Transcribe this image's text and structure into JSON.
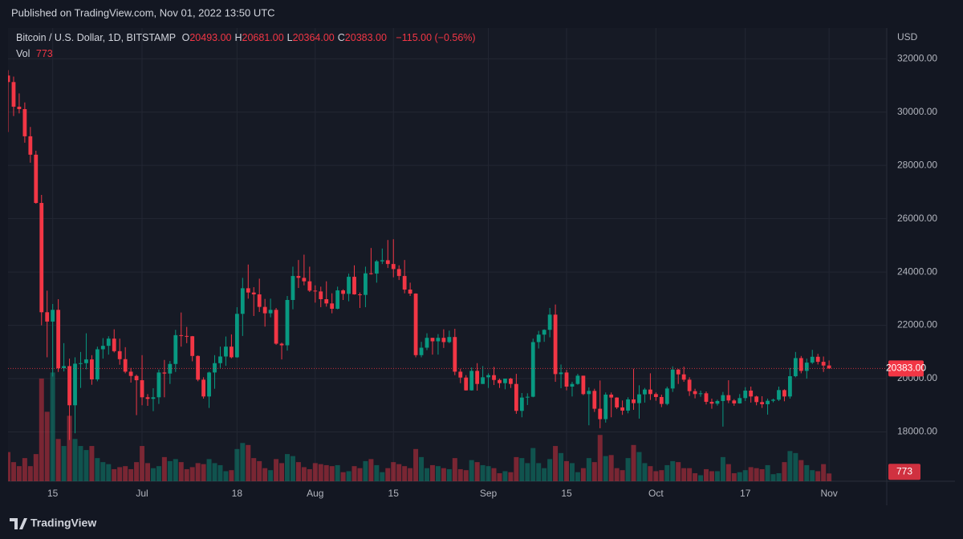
{
  "header": {
    "published": "Published on TradingView.com, Nov 01, 2022 13:50 UTC",
    "brand": "TradingView"
  },
  "chart_data": {
    "type": "candlestick",
    "legend": {
      "symbol": "Bitcoin / U.S. Dollar, 1D, BITSTAMP",
      "fields": [
        {
          "key": "O",
          "value": "20493.00"
        },
        {
          "key": "H",
          "value": "20681.00"
        },
        {
          "key": "L",
          "value": "20364.00"
        },
        {
          "key": "C",
          "value": "20383.00"
        }
      ],
      "change": "−115.00 (−0.56%)",
      "volume_key": "Vol",
      "volume_value": "773"
    },
    "currency": "USD",
    "price_label": "20383.00",
    "volume_label": "773",
    "up_color": "#089981",
    "down_color": "#f23645",
    "categories": [
      null,
      null,
      null,
      null,
      null,
      null,
      null,
      null,
      "15",
      null,
      null,
      null,
      null,
      null,
      null,
      null,
      null,
      null,
      null,
      null,
      null,
      null,
      null,
      null,
      "Jul",
      null,
      null,
      null,
      null,
      null,
      null,
      null,
      null,
      null,
      null,
      null,
      null,
      null,
      null,
      null,
      null,
      "18",
      null,
      null,
      null,
      null,
      null,
      null,
      null,
      null,
      null,
      null,
      null,
      null,
      null,
      "Aug",
      null,
      null,
      null,
      null,
      null,
      null,
      null,
      null,
      null,
      null,
      null,
      null,
      null,
      "15",
      null,
      null,
      null,
      null,
      null,
      null,
      null,
      null,
      null,
      null,
      null,
      null,
      null,
      null,
      null,
      null,
      "Sep",
      null,
      null,
      null,
      null,
      null,
      null,
      null,
      null,
      null,
      null,
      null,
      null,
      null,
      "15",
      null,
      null,
      null,
      null,
      null,
      null,
      null,
      null,
      null,
      null,
      null,
      null,
      null,
      null,
      null,
      "Oct",
      null,
      null,
      null,
      null,
      null,
      null,
      null,
      null,
      null,
      null,
      null,
      null,
      null,
      null,
      null,
      "17",
      null,
      null,
      null,
      null,
      null,
      null,
      null,
      null,
      null,
      null,
      null,
      null,
      null,
      null,
      "Nov"
    ],
    "open": [
      31370,
      31125,
      30200,
      30110,
      29090,
      28400,
      26590,
      22490,
      22140,
      22580,
      20390,
      20470,
      19000,
      20560,
      20580,
      20720,
      19970,
      21100,
      21230,
      21500,
      21030,
      20730,
      20260,
      20100,
      19940,
      19300,
      19240,
      19300,
      20230,
      20190,
      20550,
      21630,
      21600,
      21590,
      20850,
      19960,
      19330,
      20230,
      20580,
      20830,
      21200,
      20800,
      22430,
      23390,
      23230,
      23160,
      22690,
      22450,
      22580,
      21310,
      21250,
      22950,
      23850,
      23780,
      23650,
      23300,
      23270,
      22980,
      22820,
      22620,
      23310,
      23180,
      23820,
      23160,
      23140,
      23950,
      23940,
      24400,
      24440,
      24300,
      24110,
      23850,
      23340,
      23190,
      20880,
      21160,
      21530,
      21400,
      21530,
      21370,
      21560,
      20260,
      20040,
      19560,
      20290,
      19800,
      20050,
      20130,
      19950,
      19830,
      20000,
      19800,
      18790,
      19290,
      19320,
      21370,
      21650,
      21830,
      22400,
      20170,
      20230,
      19700,
      19800,
      20110,
      19420,
      19540,
      18870,
      18480,
      19400,
      19290,
      18920,
      18800,
      19220,
      19080,
      19410,
      19590,
      19420,
      19310,
      19050,
      19630,
      20340,
      20160,
      19960,
      19530,
      19420,
      19450,
      19130,
      19060,
      19160,
      19380,
      19180,
      19070,
      19270,
      19550,
      19330,
      19120,
      19040,
      19170,
      19210,
      19570,
      19330,
      20090,
      20770,
      20290,
      20600,
      20820,
      20630,
      20493
    ],
    "high": [
      31570,
      31330,
      30700,
      30360,
      29440,
      28550,
      26890,
      23300,
      22800,
      22980,
      21330,
      20750,
      20800,
      21000,
      21700,
      20880,
      21200,
      21520,
      21590,
      21850,
      21500,
      21180,
      20400,
      20150,
      20880,
      19420,
      19640,
      20340,
      20700,
      20660,
      21830,
      22480,
      21940,
      21600,
      20870,
      20050,
      20260,
      20880,
      21200,
      21580,
      21660,
      22680,
      23780,
      24280,
      23430,
      23750,
      22990,
      23000,
      22650,
      21350,
      23100,
      24200,
      24450,
      24650,
      24200,
      23500,
      23450,
      23650,
      23200,
      23450,
      23350,
      23940,
      24250,
      23230,
      24200,
      24900,
      24450,
      24880,
      25200,
      25230,
      24250,
      24450,
      23600,
      23200,
      21380,
      21700,
      21530,
      21670,
      21850,
      21800,
      21870,
      20360,
      20130,
      20420,
      20580,
      20470,
      20200,
      20440,
      20000,
      20000,
      20030,
      20180,
      19460,
      19450,
      21500,
      21790,
      21850,
      22650,
      22780,
      20530,
      20330,
      19880,
      20180,
      20110,
      19670,
      19620,
      19930,
      19480,
      19480,
      19300,
      19180,
      19300,
      20370,
      19750,
      19650,
      20200,
      19480,
      19400,
      19700,
      20460,
      20360,
      20450,
      20050,
      19620,
      19550,
      19520,
      19250,
      19210,
      19500,
      19940,
      19230,
      19420,
      19680,
      19700,
      19360,
      19340,
      19250,
      19250,
      19700,
      19600,
      20400,
      21000,
      20850,
      20750,
      21080,
      20930,
      20830,
      20681
    ],
    "low": [
      29250,
      29850,
      29950,
      28850,
      28100,
      26560,
      22000,
      20800,
      20080,
      20250,
      20270,
      17700,
      17950,
      19650,
      20350,
      19770,
      19900,
      20750,
      20900,
      20980,
      20520,
      20200,
      19850,
      18630,
      19000,
      18980,
      18780,
      19050,
      19300,
      19800,
      20250,
      21200,
      21330,
      20650,
      19900,
      19250,
      18900,
      19620,
      20400,
      20480,
      20760,
      20780,
      21600,
      23000,
      22350,
      22500,
      21950,
      22300,
      21270,
      20720,
      21050,
      22600,
      23400,
      23500,
      23250,
      22850,
      22680,
      22700,
      22450,
      22600,
      22950,
      22900,
      23150,
      22650,
      22680,
      23900,
      23600,
      24300,
      24150,
      23800,
      23700,
      23200,
      23100,
      20800,
      20800,
      21070,
      20900,
      20900,
      21150,
      21330,
      20130,
      19830,
      19550,
      19550,
      19550,
      19800,
      19650,
      19760,
      19650,
      19600,
      19650,
      18680,
      18550,
      19010,
      19300,
      21130,
      21380,
      21550,
      19880,
      19640,
      19560,
      19330,
      19770,
      19380,
      18250,
      18750,
      18140,
      18350,
      18550,
      18860,
      18640,
      18700,
      18830,
      18500,
      19100,
      19200,
      19170,
      18930,
      19000,
      19500,
      19800,
      19880,
      19350,
      19260,
      19320,
      19030,
      18870,
      18990,
      18200,
      19080,
      18980,
      19060,
      19160,
      19100,
      19000,
      18900,
      18650,
      19110,
      19160,
      19150,
      19250,
      20050,
      20200,
      20000,
      20550,
      20530,
      20250,
      20364
    ],
    "close": [
      31125,
      30200,
      30110,
      29090,
      28400,
      26590,
      22490,
      22140,
      22580,
      20390,
      20470,
      19000,
      20560,
      20580,
      20720,
      19970,
      21100,
      21230,
      21500,
      21030,
      20730,
      20260,
      20100,
      19940,
      19300,
      19240,
      19300,
      20230,
      20190,
      20550,
      21630,
      21600,
      21590,
      20850,
      19960,
      19330,
      20230,
      20580,
      20830,
      21200,
      20800,
      22430,
      23390,
      23230,
      23160,
      22690,
      22450,
      22580,
      21310,
      21250,
      22950,
      23850,
      23780,
      23650,
      23300,
      23270,
      22980,
      22820,
      22620,
      23310,
      23180,
      23820,
      23160,
      23140,
      23950,
      23940,
      24400,
      24440,
      24300,
      24110,
      23850,
      23340,
      23190,
      20880,
      21160,
      21530,
      21400,
      21530,
      21370,
      21560,
      20260,
      20040,
      19560,
      20290,
      19800,
      20050,
      20130,
      19950,
      19830,
      20000,
      19800,
      18790,
      19290,
      19320,
      21370,
      21650,
      21830,
      22400,
      20170,
      20230,
      19700,
      19800,
      20110,
      19420,
      19540,
      18870,
      18480,
      19400,
      19290,
      18920,
      18800,
      19220,
      19080,
      19410,
      19590,
      19420,
      19310,
      19050,
      19630,
      20340,
      20160,
      19960,
      19530,
      19420,
      19450,
      19130,
      19060,
      19160,
      19380,
      19180,
      19070,
      19270,
      19550,
      19330,
      19120,
      19040,
      19170,
      19210,
      19570,
      19330,
      20090,
      20770,
      20290,
      20600,
      20820,
      20630,
      20490,
      20383
    ],
    "volume": [
      2900,
      1900,
      1500,
      2300,
      1500,
      2700,
      10200,
      6900,
      10800,
      4200,
      3500,
      6500,
      4200,
      3500,
      3100,
      3500,
      2300,
      1900,
      1700,
      1200,
      1400,
      1500,
      1200,
      1900,
      3500,
      1800,
      1300,
      1500,
      2400,
      2000,
      2200,
      1900,
      1200,
      1400,
      1800,
      1700,
      2200,
      1800,
      1600,
      1000,
      1100,
      3200,
      3800,
      3600,
      2300,
      2000,
      1300,
      1100,
      2200,
      1800,
      2700,
      2500,
      1900,
      1400,
      1200,
      1800,
      1700,
      1600,
      1500,
      1600,
      900,
      1000,
      1500,
      1300,
      2000,
      2200,
      1600,
      900,
      1300,
      1900,
      1700,
      1500,
      1300,
      3200,
      2400,
      1300,
      1600,
      1500,
      1300,
      1200,
      2300,
      1200,
      1100,
      2100,
      1900,
      1600,
      1500,
      1300,
      800,
      1000,
      900,
      2400,
      2300,
      1800,
      3300,
      1800,
      1300,
      2200,
      3500,
      2800,
      2000,
      1800,
      900,
      1300,
      2300,
      1900,
      4600,
      2500,
      2600,
      1300,
      1100,
      2300,
      3600,
      2900,
      1800,
      1500,
      1000,
      1100,
      1600,
      2000,
      1900,
      1300,
      1300,
      800,
      600,
      1200,
      1000,
      1000,
      2400,
      1700,
      800,
      900,
      1100,
      1400,
      1300,
      1200,
      1600,
      700,
      800,
      1900,
      3000,
      2800,
      2100,
      1600,
      1100,
      1000,
      1700,
      773
    ],
    "ylim": [
      16150,
      33150
    ],
    "yticks": [
      {
        "value": 18000,
        "label": "18000.00"
      },
      {
        "value": 20000,
        "label": "20000.00"
      },
      {
        "value": 22000,
        "label": "22000.00"
      },
      {
        "value": 24000,
        "label": "24000.00"
      },
      {
        "value": 26000,
        "label": "26000.00"
      },
      {
        "value": 28000,
        "label": "28000.00"
      },
      {
        "value": 30000,
        "label": "30000.00"
      },
      {
        "value": 32000,
        "label": "32000.00"
      }
    ],
    "volume_lim": [
      0,
      45000
    ],
    "grid": true
  }
}
